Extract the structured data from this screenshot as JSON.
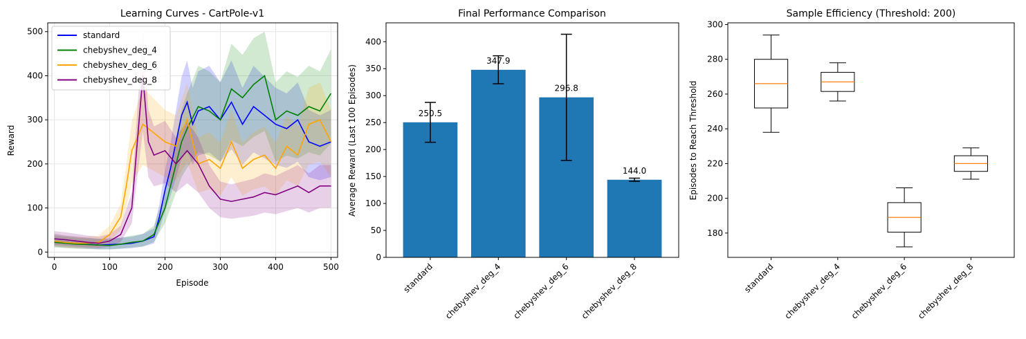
{
  "chart_data": [
    {
      "type": "line",
      "title": "Learning Curves - CartPole-v1",
      "xlabel": "Episode",
      "ylabel": "Reward",
      "xlim": [
        -12,
        512
      ],
      "ylim": [
        -12,
        520
      ],
      "xticks": [
        0,
        100,
        200,
        300,
        400,
        500
      ],
      "yticks": [
        0,
        100,
        200,
        300,
        400,
        500
      ],
      "grid": true,
      "legend_position": "top-left",
      "shaded_band": true,
      "series": [
        {
          "name": "standard",
          "color": "#0000ff",
          "x": [
            0,
            20,
            40,
            60,
            80,
            100,
            120,
            140,
            160,
            180,
            190,
            200,
            210,
            220,
            230,
            240,
            250,
            260,
            280,
            300,
            320,
            340,
            360,
            380,
            400,
            420,
            440,
            460,
            480,
            500
          ],
          "y": [
            25,
            22,
            20,
            18,
            16,
            17,
            18,
            20,
            25,
            35,
            80,
            140,
            190,
            250,
            310,
            340,
            290,
            320,
            330,
            300,
            340,
            290,
            330,
            310,
            290,
            280,
            300,
            250,
            240,
            250
          ]
        },
        {
          "name": "chebyshev_deg_4",
          "color": "#008000",
          "x": [
            0,
            20,
            40,
            60,
            80,
            100,
            120,
            140,
            160,
            180,
            200,
            210,
            220,
            230,
            240,
            260,
            280,
            300,
            320,
            340,
            360,
            380,
            400,
            420,
            440,
            460,
            480,
            500
          ],
          "y": [
            22,
            20,
            18,
            17,
            16,
            15,
            18,
            22,
            25,
            40,
            100,
            150,
            200,
            250,
            280,
            330,
            320,
            300,
            370,
            350,
            380,
            400,
            300,
            320,
            310,
            330,
            320,
            360
          ]
        },
        {
          "name": "chebyshev_deg_6",
          "color": "#ffa500",
          "x": [
            0,
            20,
            40,
            60,
            80,
            100,
            120,
            130,
            140,
            150,
            160,
            180,
            200,
            220,
            240,
            260,
            280,
            300,
            320,
            340,
            360,
            380,
            400,
            420,
            440,
            460,
            480,
            500
          ],
          "y": [
            25,
            22,
            20,
            20,
            22,
            40,
            80,
            150,
            230,
            260,
            290,
            270,
            250,
            240,
            300,
            200,
            210,
            190,
            250,
            190,
            210,
            220,
            190,
            240,
            220,
            290,
            300,
            250
          ]
        },
        {
          "name": "chebyshev_deg_8",
          "color": "#800080",
          "x": [
            0,
            20,
            40,
            60,
            80,
            100,
            120,
            140,
            150,
            160,
            170,
            180,
            200,
            220,
            240,
            260,
            280,
            300,
            320,
            340,
            360,
            380,
            400,
            420,
            440,
            460,
            480,
            500
          ],
          "y": [
            30,
            28,
            25,
            22,
            20,
            25,
            40,
            100,
            250,
            400,
            250,
            220,
            230,
            200,
            230,
            200,
            150,
            120,
            115,
            120,
            125,
            135,
            130,
            140,
            150,
            135,
            150,
            150
          ]
        }
      ]
    },
    {
      "type": "bar",
      "title": "Final Performance Comparison",
      "xlabel": "",
      "ylabel": "Average Reward (Last 100 Episodes)",
      "ylim": [
        0,
        435
      ],
      "yticks": [
        0,
        50,
        100,
        150,
        200,
        250,
        300,
        350,
        400
      ],
      "bar_color": "#1f77b4",
      "categories": [
        "standard",
        "chebyshev_deg_4",
        "chebyshev_deg_6",
        "chebyshev_deg_8"
      ],
      "values": [
        250.5,
        347.9,
        296.8,
        144.0
      ],
      "errors": [
        37,
        26,
        117,
        3
      ],
      "value_labels": [
        "250.5",
        "347.9",
        "296.8",
        "144.0"
      ]
    },
    {
      "type": "box",
      "title": "Sample Efficiency (Threshold: 200)",
      "xlabel": "",
      "ylabel": "Episodes to Reach Threshold",
      "ylim": [
        166,
        301
      ],
      "yticks": [
        180,
        200,
        220,
        240,
        260,
        280,
        300
      ],
      "median_color": "#ff7f0e",
      "categories": [
        "standard",
        "chebyshev_deg_4",
        "chebyshev_deg_6",
        "chebyshev_deg_8"
      ],
      "boxes": [
        {
          "min": 238,
          "q1": 252,
          "median": 266,
          "q3": 280,
          "max": 294
        },
        {
          "min": 256,
          "q1": 261.5,
          "median": 267,
          "q3": 272.5,
          "max": 278
        },
        {
          "min": 172,
          "q1": 180.5,
          "median": 189,
          "q3": 197.5,
          "max": 206
        },
        {
          "min": 211,
          "q1": 215.5,
          "median": 220,
          "q3": 224.5,
          "max": 229
        }
      ]
    }
  ]
}
